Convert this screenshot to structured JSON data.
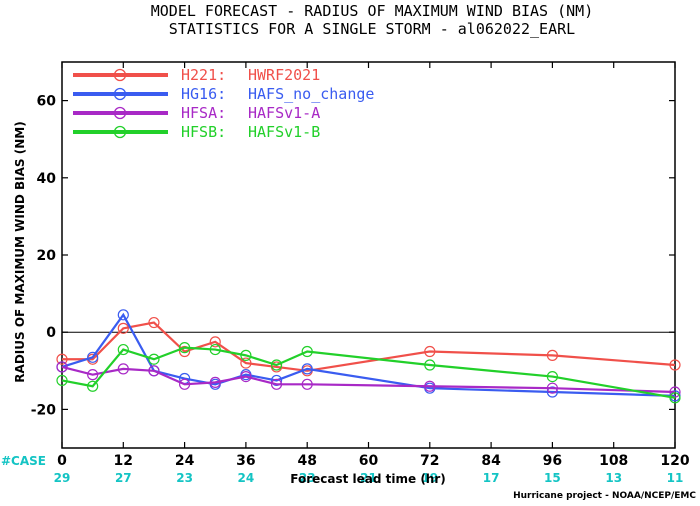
{
  "title_line1": "MODEL FORECAST - RADIUS OF MAXIMUM WIND BIAS (NM)",
  "title_line2": "STATISTICS FOR A SINGLE STORM - al062022_EARL",
  "credit": "Hurricane project - NOAA/NCEP/EMC",
  "case_label": "#CASE",
  "chart_data": {
    "type": "line",
    "title": "MODEL FORECAST - RADIUS OF MAXIMUM WIND BIAS (NM)",
    "subtitle": "STATISTICS FOR A SINGLE STORM - al062022_EARL",
    "xlabel": "Forecast lead time (hr)",
    "ylabel": "RADIUS OF MAXIMUM WIND BIAS (NM)",
    "xlim": [
      0,
      120
    ],
    "ylim": [
      -30,
      70
    ],
    "xticks": [
      0,
      12,
      24,
      36,
      48,
      60,
      72,
      84,
      96,
      108,
      120
    ],
    "yticks": [
      -20,
      0,
      20,
      40,
      60
    ],
    "zero_line": true,
    "grid": false,
    "legend_position": "top-left",
    "cases": [
      {
        "x": 0,
        "n": "29"
      },
      {
        "x": 12,
        "n": "27"
      },
      {
        "x": 24,
        "n": "23"
      },
      {
        "x": 36,
        "n": "24"
      },
      {
        "x": 48,
        "n": "23"
      },
      {
        "x": 60,
        "n": "21"
      },
      {
        "x": 72,
        "n": "19"
      },
      {
        "x": 84,
        "n": "17"
      },
      {
        "x": 96,
        "n": "15"
      },
      {
        "x": 108,
        "n": "13"
      },
      {
        "x": 120,
        "n": "11"
      }
    ],
    "series": [
      {
        "name": "H221:",
        "desc": "HWRF2021",
        "color": "#f0504a",
        "x": [
          0,
          6,
          12,
          18,
          24,
          30,
          36,
          42,
          48,
          72,
          96,
          120
        ],
        "y": [
          -7,
          -7,
          1,
          2.5,
          -5,
          -2.5,
          -8,
          -9,
          -10,
          -5,
          -6,
          -8.5
        ]
      },
      {
        "name": "HG16:",
        "desc": "HAFS_no_change",
        "color": "#3a5cf0",
        "x": [
          0,
          6,
          12,
          18,
          24,
          30,
          36,
          42,
          48,
          72,
          96,
          120
        ],
        "y": [
          -9,
          -6.5,
          4.5,
          -10,
          -12,
          -13.5,
          -11,
          -12.5,
          -9.5,
          -14.5,
          -15.5,
          -16.5
        ]
      },
      {
        "name": "HFSA:",
        "desc": "HAFSv1-A",
        "color": "#a829c6",
        "x": [
          0,
          6,
          12,
          18,
          24,
          30,
          36,
          42,
          48,
          72,
          96,
          120
        ],
        "y": [
          -9,
          -11,
          -9.5,
          -10,
          -13.5,
          -13,
          -11.5,
          -13.5,
          -13.5,
          -14,
          -14.5,
          -15.5
        ]
      },
      {
        "name": "HFSB:",
        "desc": "HAFSv1-B",
        "color": "#22d02a",
        "x": [
          0,
          6,
          12,
          18,
          24,
          30,
          36,
          42,
          48,
          72,
          96,
          120
        ],
        "y": [
          -12.5,
          -14,
          -4.5,
          -7,
          -4,
          -4.5,
          -6,
          -8.5,
          -5,
          -8.5,
          -11.5,
          -17
        ]
      }
    ]
  }
}
